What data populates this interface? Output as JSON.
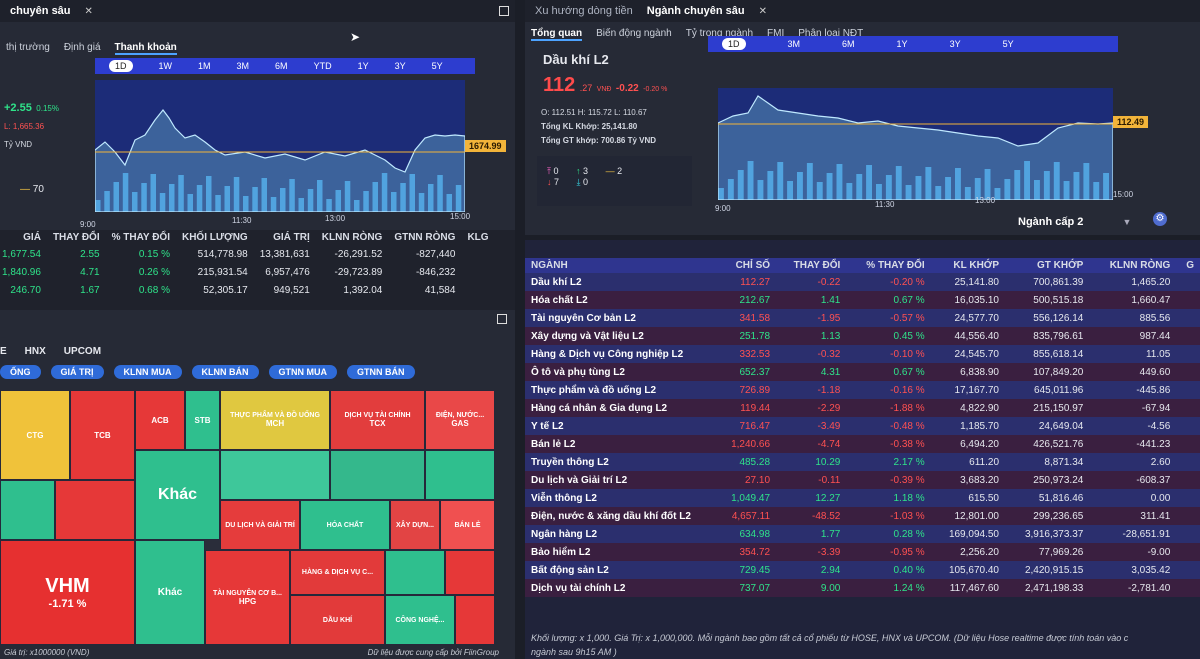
{
  "left_pane": {
    "window_tab": "chuyên sâu",
    "subtabs": [
      "thị trường",
      "Định giá",
      "Thanh khoản"
    ],
    "ranges": [
      "1D",
      "1W",
      "1M",
      "3M",
      "6M",
      "YTD",
      "1Y",
      "3Y",
      "5Y"
    ],
    "index_change": "+2.55",
    "index_change_small": "0.15%",
    "index_low": "L: 1,665.36",
    "volume_unit": "Tỷ VND",
    "counts_value": "70",
    "price_tag": "1674.99",
    "time_labels": [
      "9:00",
      "11:30",
      "13:00",
      "15:00"
    ]
  },
  "index_table": {
    "headers": [
      "GIÁ",
      "THAY ĐỔI",
      "% THAY ĐỔI",
      "KHỐI LƯỢNG",
      "GIÁ TRỊ",
      "KLNN RÒNG",
      "GTNN RÒNG",
      "KLG"
    ],
    "rows": [
      {
        "price": "1,677.54",
        "change": "2.55",
        "pct": "0.15 %",
        "vol": "514,778.98",
        "val": "13,381,631",
        "klnn": "-26,291.52",
        "gtnn": "-827,440"
      },
      {
        "price": "1,840.96",
        "change": "4.71",
        "pct": "0.26 %",
        "vol": "215,931.54",
        "val": "6,957,476",
        "klnn": "-29,723.89",
        "gtnn": "-846,232"
      },
      {
        "price": "246.70",
        "change": "1.67",
        "pct": "0.68 %",
        "vol": "52,305.17",
        "val": "949,521",
        "klnn": "1,392.04",
        "gtnn": "41,584"
      }
    ]
  },
  "treemap": {
    "exchange_tabs": [
      "HNX",
      "UPCOM"
    ],
    "metric_pills": [
      "GIÁ TRỊ",
      "KLNN MUA",
      "KLNN BÁN",
      "GTNN MUA",
      "GTNN BÁN"
    ],
    "first_pill": "ỐNG",
    "exchange_first": "E",
    "sectors": [
      "THỰC PHẨM VÀ ĐỒ UỐNG",
      "DỊCH VỤ TÀI CHÍNH",
      "ĐIỆN, NƯỚC...",
      "DU LỊCH VÀ GIẢI TRÍ",
      "HÓA CHẤT",
      "XÂY DỰN...",
      "BÁN LẺ",
      "HÀNG & DỊCH VỤ C...",
      "CÔNG NGHỆ...",
      "TÀI NGUYÊN CƠ B...",
      "DẦU KHÍ"
    ],
    "tickers": {
      "ctg": "CTG",
      "tcb": "TCB",
      "acb": "ACB",
      "stb": "STB",
      "mch": "MCH",
      "tcx": "TCX",
      "gas": "GAS",
      "khac1": "Khác",
      "khac2": "Khác",
      "vhm": "VHM",
      "vhm_pct": "-1.71 %",
      "hpg": "HPG"
    },
    "footer_left": "Giá trị: x1000000 (VND)",
    "footer_right": "Dữ liệu được cung cấp bởi FiinGroup"
  },
  "right_pane": {
    "window_tabs": [
      "Xu hướng dòng tiền",
      "Ngành chuyên sâu"
    ],
    "subtabs": [
      "Tổng quan",
      "Biến động ngành",
      "Tỷ trọng ngành",
      "FMI",
      "Phân loại NĐT"
    ],
    "ranges": [
      "1D",
      "3M",
      "6M",
      "1Y",
      "3Y",
      "5Y"
    ],
    "sector_name": "Dầu khí L2",
    "price": "112",
    "price_decimal": ".27",
    "price_unit": "VNĐ",
    "change": "-0.22",
    "change_pct": "-0.20 %",
    "ohl": "O: 112.51   H: 115.72   L: 110.67",
    "total_vol": "Tổng KL Khớp: 25,141.80",
    "total_val": "Tổng GT khớp: 700.86 Tỷ VND",
    "counts": {
      "ceil": "0",
      "up": "3",
      "ref": "2",
      "down": "7",
      "floor": "0"
    },
    "price_tag": "112.49",
    "time_labels": [
      "9:00",
      "11:30",
      "13:00",
      "15:00"
    ],
    "level_select": "Ngành cấp 2"
  },
  "sector_table": {
    "headers": [
      "NGÀNH",
      "CHỈ SỐ",
      "THAY ĐỔI",
      "% THAY ĐỔI",
      "KL KHỚP",
      "GT KHỚP",
      "KLNN RÒNG",
      "G"
    ],
    "rows": [
      {
        "name": "Dầu khí L2",
        "idx": "112.27",
        "chg": "-0.22",
        "pct": "-0.20 %",
        "kl": "25,141.80",
        "gt": "700,861.39",
        "nn": "1,465.20",
        "dir": "down"
      },
      {
        "name": "Hóa chất L2",
        "idx": "212.67",
        "chg": "1.41",
        "pct": "0.67 %",
        "kl": "16,035.10",
        "gt": "500,515.18",
        "nn": "1,660.47",
        "dir": "up"
      },
      {
        "name": "Tài nguyên Cơ bản L2",
        "idx": "341.58",
        "chg": "-1.95",
        "pct": "-0.57 %",
        "kl": "24,577.70",
        "gt": "556,126.14",
        "nn": "885.56",
        "dir": "down"
      },
      {
        "name": "Xây dựng và Vật liệu L2",
        "idx": "251.78",
        "chg": "1.13",
        "pct": "0.45 %",
        "kl": "44,556.40",
        "gt": "835,796.61",
        "nn": "987.44",
        "dir": "up"
      },
      {
        "name": "Hàng & Dịch vụ Công nghiệp L2",
        "idx": "332.53",
        "chg": "-0.32",
        "pct": "-0.10 %",
        "kl": "24,545.70",
        "gt": "855,618.14",
        "nn": "11.05",
        "dir": "down"
      },
      {
        "name": "Ô tô và phụ tùng L2",
        "idx": "652.37",
        "chg": "4.31",
        "pct": "0.67 %",
        "kl": "6,838.90",
        "gt": "107,849.20",
        "nn": "449.60",
        "dir": "up"
      },
      {
        "name": "Thực phẩm và đồ uống L2",
        "idx": "726.89",
        "chg": "-1.18",
        "pct": "-0.16 %",
        "kl": "17,167.70",
        "gt": "645,011.96",
        "nn": "-445.86",
        "dir": "down"
      },
      {
        "name": "Hàng cá nhân & Gia dụng L2",
        "idx": "119.44",
        "chg": "-2.29",
        "pct": "-1.88 %",
        "kl": "4,822.90",
        "gt": "215,150.97",
        "nn": "-67.94",
        "dir": "down"
      },
      {
        "name": "Y tế L2",
        "idx": "716.47",
        "chg": "-3.49",
        "pct": "-0.48 %",
        "kl": "1,185.70",
        "gt": "24,649.04",
        "nn": "-4.56",
        "dir": "down"
      },
      {
        "name": "Bán lẻ L2",
        "idx": "1,240.66",
        "chg": "-4.74",
        "pct": "-0.38 %",
        "kl": "6,494.20",
        "gt": "426,521.76",
        "nn": "-441.23",
        "dir": "down"
      },
      {
        "name": "Truyền thông L2",
        "idx": "485.28",
        "chg": "10.29",
        "pct": "2.17 %",
        "kl": "611.20",
        "gt": "8,871.34",
        "nn": "2.60",
        "dir": "up"
      },
      {
        "name": "Du lịch và Giải trí L2",
        "idx": "27.10",
        "chg": "-0.11",
        "pct": "-0.39 %",
        "kl": "3,683.20",
        "gt": "250,973.24",
        "nn": "-608.37",
        "dir": "down"
      },
      {
        "name": "Viễn thông L2",
        "idx": "1,049.47",
        "chg": "12.27",
        "pct": "1.18 %",
        "kl": "615.50",
        "gt": "51,816.46",
        "nn": "0.00",
        "dir": "up"
      },
      {
        "name": "Điện, nước & xăng dầu khí đốt L2",
        "idx": "4,657.11",
        "chg": "-48.52",
        "pct": "-1.03 %",
        "kl": "12,801.00",
        "gt": "299,236.65",
        "nn": "311.41",
        "dir": "down"
      },
      {
        "name": "Ngân hàng L2",
        "idx": "634.98",
        "chg": "1.77",
        "pct": "0.28 %",
        "kl": "169,094.50",
        "gt": "3,916,373.37",
        "nn": "-28,651.91",
        "dir": "up"
      },
      {
        "name": "Bảo hiểm L2",
        "idx": "354.72",
        "chg": "-3.39",
        "pct": "-0.95 %",
        "kl": "2,256.20",
        "gt": "77,969.26",
        "nn": "-9.00",
        "dir": "down"
      },
      {
        "name": "Bất động sản L2",
        "idx": "729.45",
        "chg": "2.94",
        "pct": "0.40 %",
        "kl": "105,670.40",
        "gt": "2,420,915.15",
        "nn": "3,035.42",
        "dir": "up"
      },
      {
        "name": "Dịch vụ tài chính L2",
        "idx": "737.07",
        "chg": "9.00",
        "pct": "1.24 %",
        "kl": "117,467.60",
        "gt": "2,471,198.33",
        "nn": "-2,781.40",
        "dir": "up"
      }
    ],
    "footnote": "Khối lượng: x 1,000. Giá Trị: x 1,000,000. Mỗi ngành bao gồm tất cả cổ phiếu từ HOSE, HNX và UPCOM. (Dữ liệu Hose realtime được tính toán vào c",
    "footnote2": "ngành sau 9h15 AM )"
  },
  "colors": {
    "up": "#2fe38a",
    "down": "#ff5151",
    "ref": "#f5c542",
    "accent": "#2d3dcf"
  }
}
